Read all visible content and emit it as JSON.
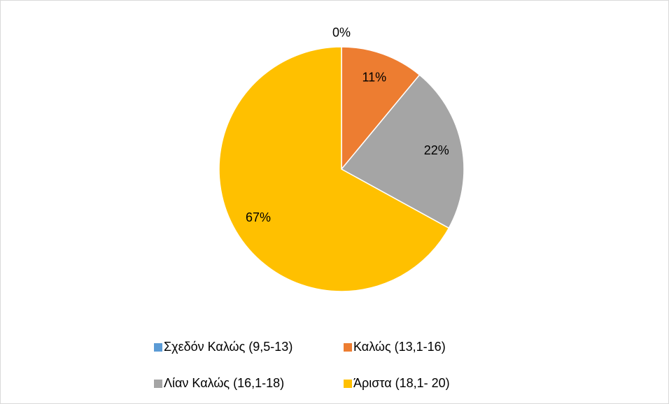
{
  "chart_data": {
    "type": "pie",
    "categories": [
      "Σχεδόν Καλώς (9,5-13)",
      "Καλώς (13,1-16)",
      "Λίαν Καλώς (16,1-18)",
      "Άριστα (18,1- 20)"
    ],
    "values": [
      0,
      11,
      22,
      67
    ],
    "value_labels": [
      "0%",
      "11%",
      "22%",
      "67%"
    ],
    "colors": [
      "#5b9bd5",
      "#ed7d31",
      "#a5a5a5",
      "#ffc000"
    ],
    "legend": "bottom"
  }
}
